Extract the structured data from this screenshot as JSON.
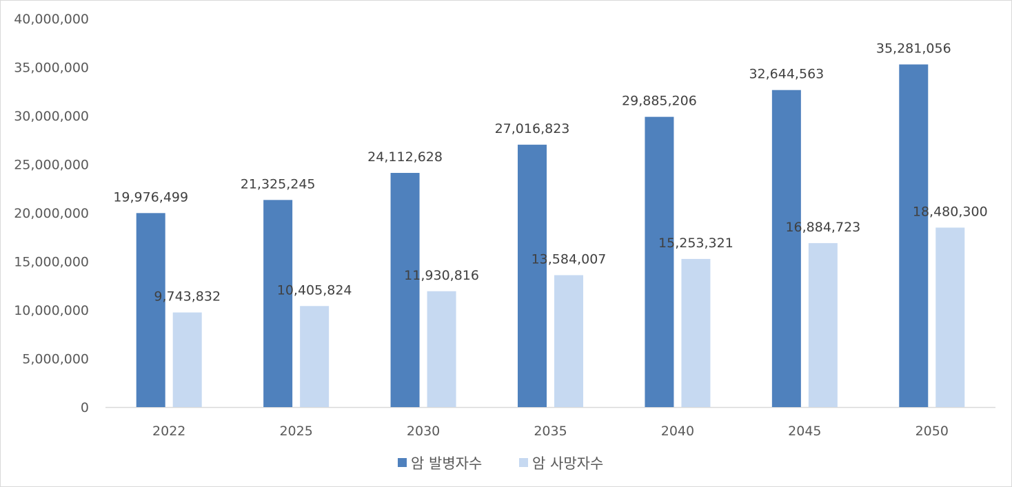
{
  "chart_data": {
    "type": "bar",
    "title": "",
    "xlabel": "",
    "ylabel": "",
    "categories": [
      "2022",
      "2025",
      "2030",
      "2035",
      "2040",
      "2045",
      "2050"
    ],
    "series": [
      {
        "name": "암 발병자수",
        "color": "#4f81bd",
        "values": [
          19976499,
          21325245,
          24112628,
          27016823,
          29885206,
          32644563,
          35281056
        ],
        "labels": [
          "19,976,499",
          "21,325,245",
          "24,112,628",
          "27,016,823",
          "29,885,206",
          "32,644,563",
          "35,281,056"
        ]
      },
      {
        "name": "암 사망자수",
        "color": "#c6d9f1",
        "values": [
          9743832,
          10405824,
          11930816,
          13584007,
          15253321,
          16884723,
          18480300
        ],
        "labels": [
          "9,743,832",
          "10,405,824",
          "11,930,816",
          "13,584,007",
          "15,253,321",
          "16,884,723",
          "18,480,300"
        ]
      }
    ],
    "ylim": [
      0,
      40000000
    ],
    "yticks": [
      0,
      5000000,
      10000000,
      15000000,
      20000000,
      25000000,
      30000000,
      35000000,
      40000000
    ],
    "ytick_labels": [
      "0",
      "5,000,000",
      "10,000,000",
      "15,000,000",
      "20,000,000",
      "25,000,000",
      "30,000,000",
      "35,000,000",
      "40,000,000"
    ],
    "grid": false,
    "legend_position": "bottom"
  }
}
